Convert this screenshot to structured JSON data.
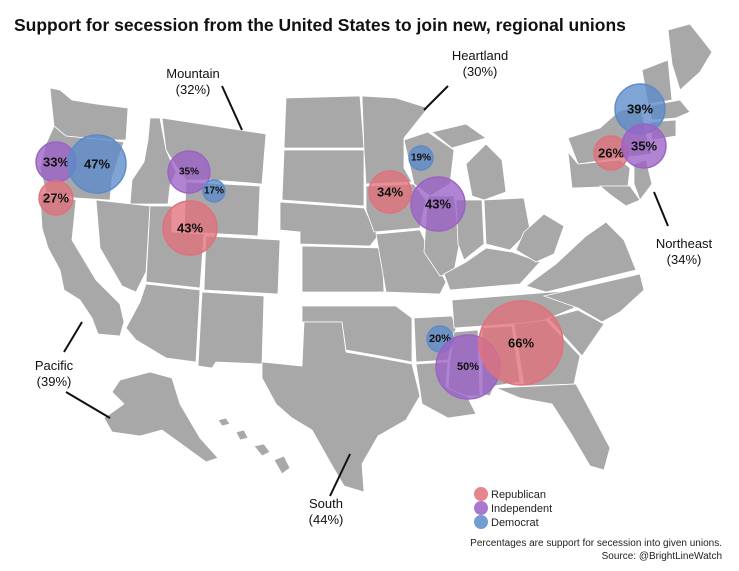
{
  "title": "Support for secession from the United States to join new, regional unions",
  "colors": {
    "republican": "#e0717b",
    "independent": "#9b62c6",
    "democrat": "#5b8bc9",
    "land": "#a8a8a8"
  },
  "regions": [
    {
      "id": "pacific",
      "name": "Pacific",
      "pct_label": "(39%)",
      "support_pct": 39
    },
    {
      "id": "mountain",
      "name": "Mountain",
      "pct_label": "(32%)",
      "support_pct": 32
    },
    {
      "id": "heartland",
      "name": "Heartland",
      "pct_label": "(30%)",
      "support_pct": 30
    },
    {
      "id": "northeast",
      "name": "Northeast",
      "pct_label": "(34%)",
      "support_pct": 34
    },
    {
      "id": "south",
      "name": "South",
      "pct_label": "(44%)",
      "support_pct": 44
    }
  ],
  "bubbles": [
    {
      "region": "pacific",
      "party": "independent",
      "value": 33,
      "label": "33%"
    },
    {
      "region": "pacific",
      "party": "democrat",
      "value": 47,
      "label": "47%"
    },
    {
      "region": "pacific",
      "party": "republican",
      "value": 27,
      "label": "27%"
    },
    {
      "region": "mountain",
      "party": "independent",
      "value": 35,
      "label": "35%"
    },
    {
      "region": "mountain",
      "party": "democrat",
      "value": 17,
      "label": "17%"
    },
    {
      "region": "mountain",
      "party": "republican",
      "value": 43,
      "label": "43%"
    },
    {
      "region": "heartland",
      "party": "democrat",
      "value": 19,
      "label": "19%"
    },
    {
      "region": "heartland",
      "party": "republican",
      "value": 34,
      "label": "34%"
    },
    {
      "region": "heartland",
      "party": "independent",
      "value": 43,
      "label": "43%"
    },
    {
      "region": "northeast",
      "party": "democrat",
      "value": 39,
      "label": "39%"
    },
    {
      "region": "northeast",
      "party": "republican",
      "value": 26,
      "label": "26%"
    },
    {
      "region": "northeast",
      "party": "independent",
      "value": 35,
      "label": "35%"
    },
    {
      "region": "south",
      "party": "democrat",
      "value": 20,
      "label": "20%"
    },
    {
      "region": "south",
      "party": "independent",
      "value": 50,
      "label": "50%"
    },
    {
      "region": "south",
      "party": "republican",
      "value": 66,
      "label": "66%"
    }
  ],
  "legend": [
    {
      "party": "republican",
      "label": "Republican"
    },
    {
      "party": "independent",
      "label": "Independent"
    },
    {
      "party": "democrat",
      "label": "Democrat"
    }
  ],
  "note": "Percentages are support for secession into given unions.",
  "source": "Source: @BrightLineWatch"
}
